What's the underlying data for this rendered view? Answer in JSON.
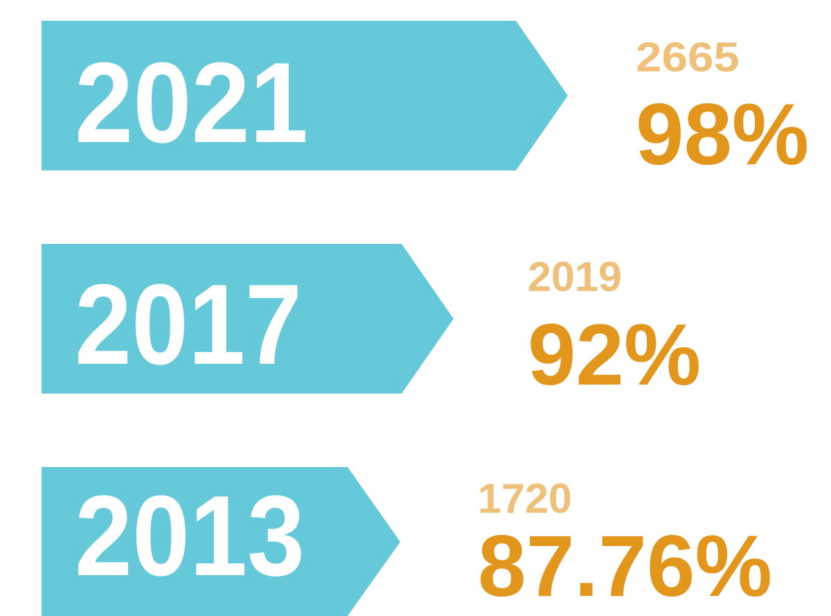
{
  "items": [
    {
      "year": "2021",
      "count": "2665",
      "percent": "98%"
    },
    {
      "year": "2017",
      "count": "2019",
      "percent": "92%"
    },
    {
      "year": "2013",
      "count": "1720",
      "percent": "87.76%"
    }
  ]
}
